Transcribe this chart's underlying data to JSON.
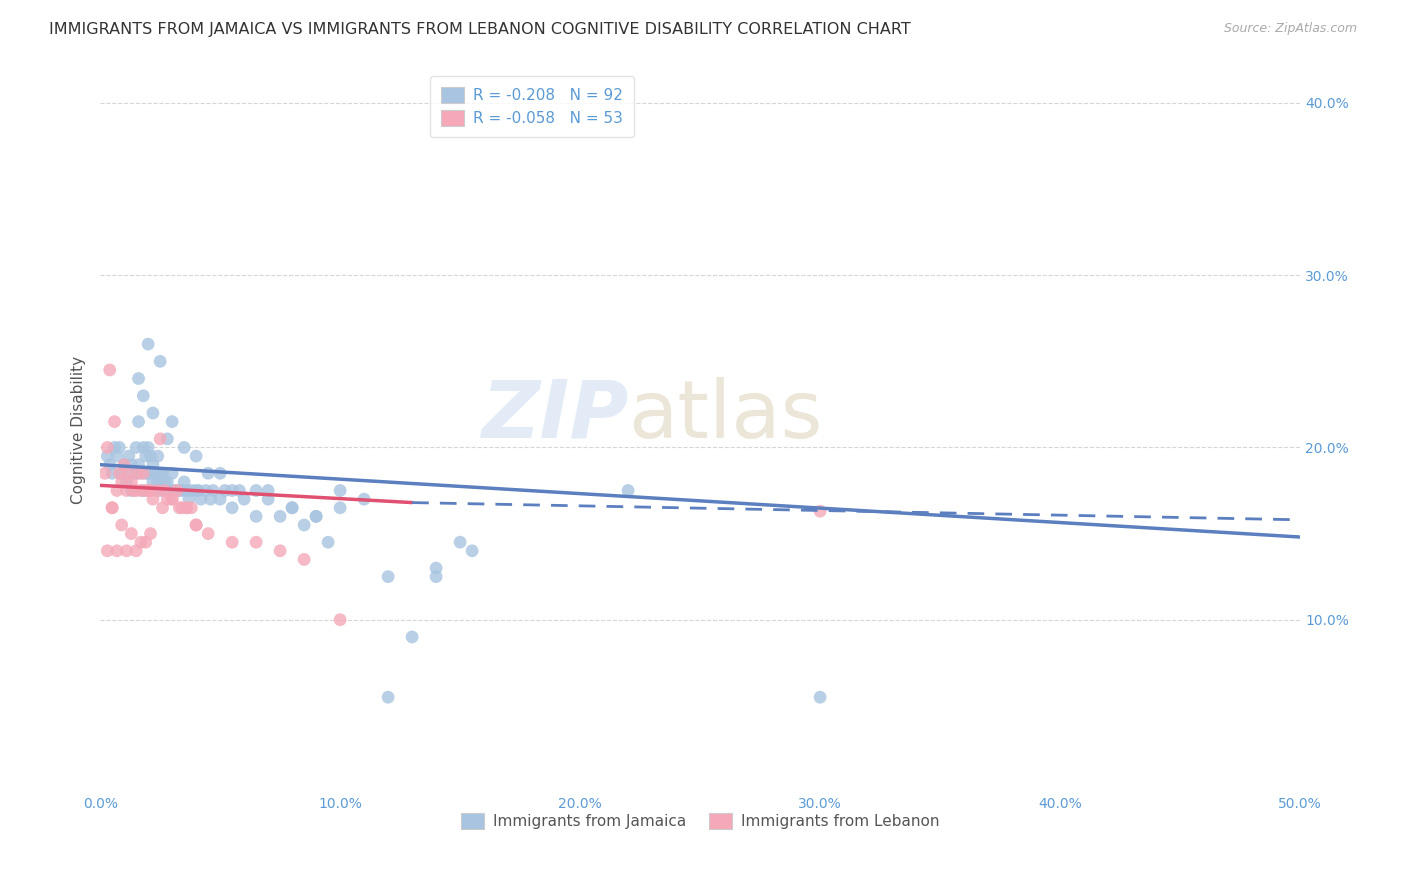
{
  "title": "IMMIGRANTS FROM JAMAICA VS IMMIGRANTS FROM LEBANON COGNITIVE DISABILITY CORRELATION CHART",
  "source": "Source: ZipAtlas.com",
  "ylabel": "Cognitive Disability",
  "xlim": [
    0.0,
    0.5
  ],
  "ylim": [
    0.0,
    0.42
  ],
  "xticks": [
    0.0,
    0.1,
    0.2,
    0.3,
    0.4,
    0.5
  ],
  "xticklabels": [
    "0.0%",
    "10.0%",
    "20.0%",
    "30.0%",
    "40.0%",
    "50.0%"
  ],
  "yticks": [
    0.1,
    0.2,
    0.3,
    0.4
  ],
  "yticklabels": [
    "10.0%",
    "20.0%",
    "30.0%",
    "40.0%"
  ],
  "legend1_label": "R = -0.208   N = 92",
  "legend2_label": "R = -0.058   N = 53",
  "series1_name": "Immigrants from Jamaica",
  "series2_name": "Immigrants from Lebanon",
  "series1_color": "#a8c4e0",
  "series2_color": "#f4a8b8",
  "trend1_color": "#5b7fbf",
  "trend2_color": "#e05070",
  "background_color": "#ffffff",
  "grid_color": "#bbbbbb",
  "axis_color": "#5b9bd5",
  "jamaica_x": [
    0.003,
    0.004,
    0.005,
    0.006,
    0.007,
    0.008,
    0.009,
    0.01,
    0.011,
    0.012,
    0.013,
    0.013,
    0.014,
    0.015,
    0.015,
    0.016,
    0.016,
    0.017,
    0.018,
    0.018,
    0.019,
    0.019,
    0.02,
    0.02,
    0.021,
    0.021,
    0.022,
    0.022,
    0.023,
    0.024,
    0.024,
    0.025,
    0.025,
    0.026,
    0.027,
    0.028,
    0.029,
    0.03,
    0.031,
    0.032,
    0.033,
    0.034,
    0.035,
    0.036,
    0.037,
    0.038,
    0.04,
    0.041,
    0.042,
    0.044,
    0.046,
    0.047,
    0.05,
    0.052,
    0.055,
    0.058,
    0.06,
    0.065,
    0.07,
    0.075,
    0.08,
    0.085,
    0.09,
    0.095,
    0.1,
    0.11,
    0.12,
    0.13,
    0.14,
    0.15,
    0.016,
    0.02,
    0.025,
    0.03,
    0.04,
    0.05,
    0.065,
    0.08,
    0.1,
    0.12,
    0.018,
    0.022,
    0.028,
    0.035,
    0.045,
    0.055,
    0.07,
    0.09,
    0.22,
    0.3,
    0.14,
    0.155
  ],
  "jamaica_y": [
    0.195,
    0.19,
    0.185,
    0.2,
    0.195,
    0.2,
    0.185,
    0.19,
    0.18,
    0.195,
    0.19,
    0.175,
    0.185,
    0.2,
    0.185,
    0.19,
    0.215,
    0.185,
    0.2,
    0.175,
    0.185,
    0.195,
    0.185,
    0.2,
    0.185,
    0.195,
    0.18,
    0.19,
    0.185,
    0.18,
    0.195,
    0.185,
    0.175,
    0.185,
    0.18,
    0.18,
    0.175,
    0.185,
    0.175,
    0.175,
    0.175,
    0.175,
    0.18,
    0.175,
    0.17,
    0.175,
    0.175,
    0.175,
    0.17,
    0.175,
    0.17,
    0.175,
    0.17,
    0.175,
    0.165,
    0.175,
    0.17,
    0.16,
    0.175,
    0.16,
    0.165,
    0.155,
    0.16,
    0.145,
    0.165,
    0.17,
    0.125,
    0.09,
    0.13,
    0.145,
    0.24,
    0.26,
    0.25,
    0.215,
    0.195,
    0.185,
    0.175,
    0.165,
    0.175,
    0.055,
    0.23,
    0.22,
    0.205,
    0.2,
    0.185,
    0.175,
    0.17,
    0.16,
    0.175,
    0.055,
    0.125,
    0.14
  ],
  "lebanon_x": [
    0.002,
    0.003,
    0.004,
    0.005,
    0.006,
    0.007,
    0.008,
    0.009,
    0.01,
    0.011,
    0.012,
    0.013,
    0.014,
    0.015,
    0.016,
    0.017,
    0.018,
    0.019,
    0.02,
    0.021,
    0.003,
    0.005,
    0.007,
    0.009,
    0.011,
    0.013,
    0.015,
    0.017,
    0.019,
    0.021,
    0.022,
    0.024,
    0.026,
    0.028,
    0.03,
    0.032,
    0.034,
    0.036,
    0.038,
    0.04,
    0.025,
    0.027,
    0.03,
    0.033,
    0.036,
    0.04,
    0.045,
    0.055,
    0.065,
    0.075,
    0.085,
    0.1,
    0.3
  ],
  "lebanon_y": [
    0.185,
    0.2,
    0.245,
    0.165,
    0.215,
    0.175,
    0.185,
    0.18,
    0.19,
    0.175,
    0.185,
    0.18,
    0.175,
    0.175,
    0.185,
    0.175,
    0.185,
    0.175,
    0.175,
    0.175,
    0.14,
    0.165,
    0.14,
    0.155,
    0.14,
    0.15,
    0.14,
    0.145,
    0.145,
    0.15,
    0.17,
    0.175,
    0.165,
    0.17,
    0.17,
    0.175,
    0.165,
    0.165,
    0.165,
    0.155,
    0.205,
    0.175,
    0.17,
    0.165,
    0.165,
    0.155,
    0.15,
    0.145,
    0.145,
    0.14,
    0.135,
    0.1,
    0.163
  ],
  "trend_jamaica_x0": 0.0,
  "trend_jamaica_y0": 0.19,
  "trend_jamaica_x1": 0.5,
  "trend_jamaica_y1": 0.148,
  "trend_lebanon_solid_x0": 0.0,
  "trend_lebanon_solid_y0": 0.178,
  "trend_lebanon_solid_x1": 0.13,
  "trend_lebanon_solid_y1": 0.168,
  "trend_lebanon_dash_x0": 0.13,
  "trend_lebanon_dash_y0": 0.168,
  "trend_lebanon_dash_x1": 0.5,
  "trend_lebanon_dash_y1": 0.158
}
